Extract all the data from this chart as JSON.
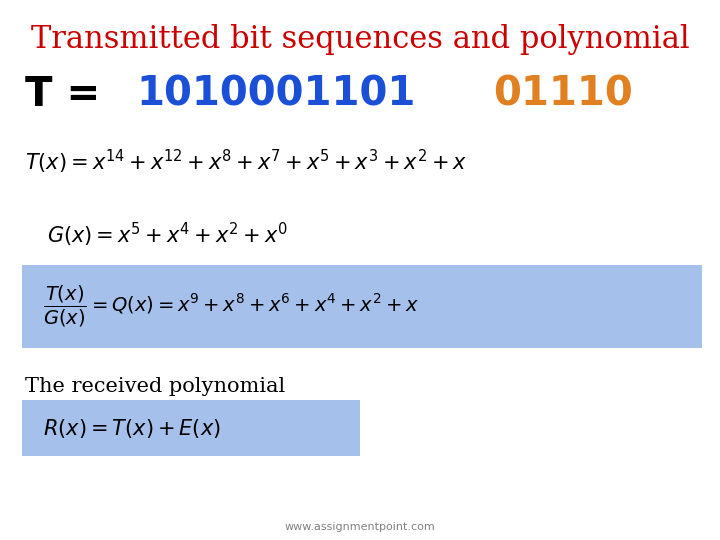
{
  "title": "Transmitted bit sequences and polynomial",
  "title_color": "#cc0000",
  "title_fontsize": 22,
  "bg_color": "#ffffff",
  "T_blue": "1010001101",
  "T_orange": "01110",
  "blue_color": "#1a4fd6",
  "orange_color": "#e08020",
  "highlight_color": "#5b8dd9",
  "highlight_alpha": 0.55,
  "formula_Tx": "$T(x) = x^{14} + x^{12} + x^{8} + x^{7} + x^{5} + x^{3} + x^{2} + x$",
  "formula_Gx": "$G(x) = x^{5} + x^{4} + x^{2} + x^{0}$",
  "formula_div": "$\\dfrac{T(x)}{G(x)} = Q(x) = x^{9} + x^{8} + x^{6} + x^{4} + x^{2} + x$",
  "formula_Rx": "$R(x) = T(x) + E(x)$",
  "received_label": "The received polynomial",
  "watermark": "www.assignmentpoint.com"
}
